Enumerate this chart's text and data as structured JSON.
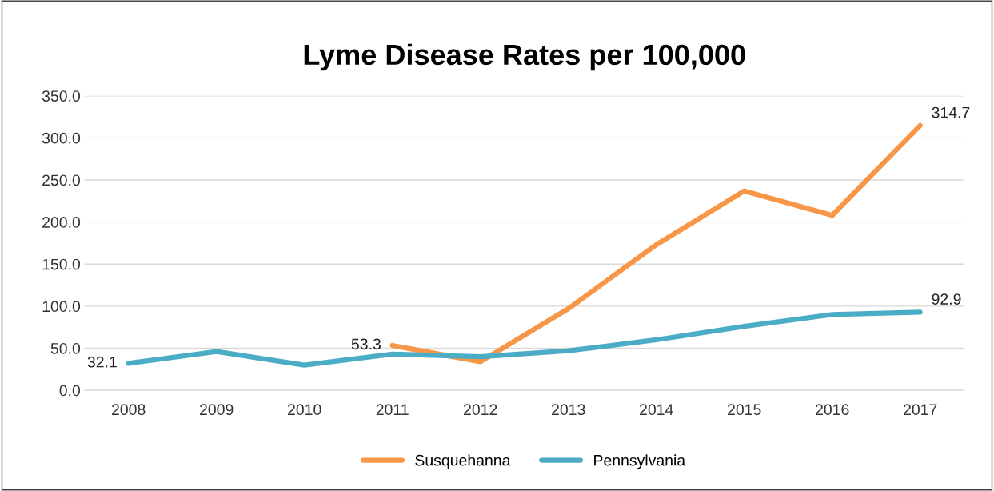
{
  "chart_data": {
    "type": "line",
    "title": "Lyme Disease Rates per 100,000",
    "categories": [
      "2008",
      "2009",
      "2010",
      "2011",
      "2012",
      "2013",
      "2014",
      "2015",
      "2016",
      "2017"
    ],
    "series": [
      {
        "name": "Susquehanna",
        "color": "#f79646",
        "values": [
          null,
          null,
          null,
          53.3,
          34,
          97,
          173,
          237,
          208,
          314.7
        ],
        "value_labels": [
          null,
          null,
          null,
          "53.3",
          null,
          null,
          null,
          null,
          null,
          "314.7"
        ]
      },
      {
        "name": "Pennsylvania",
        "color": "#4bacc6",
        "values": [
          32.1,
          46,
          30,
          43,
          40,
          47,
          60,
          76,
          90,
          92.9
        ],
        "value_labels": [
          "32.1",
          null,
          null,
          null,
          null,
          null,
          null,
          null,
          null,
          "92.9"
        ]
      }
    ],
    "ylim": [
      0,
      350
    ],
    "yticks": [
      {
        "value": 0,
        "label": "0.0"
      },
      {
        "value": 50,
        "label": "50.0"
      },
      {
        "value": 100,
        "label": "100.0"
      },
      {
        "value": 150,
        "label": "150.0"
      },
      {
        "value": 200,
        "label": "200.0"
      },
      {
        "value": 250,
        "label": "250.0"
      },
      {
        "value": 300,
        "label": "300.0"
      },
      {
        "value": 350,
        "label": "350.0"
      }
    ],
    "grid": "y",
    "legend": "bottom",
    "marker": "none",
    "line_style": "solid"
  }
}
